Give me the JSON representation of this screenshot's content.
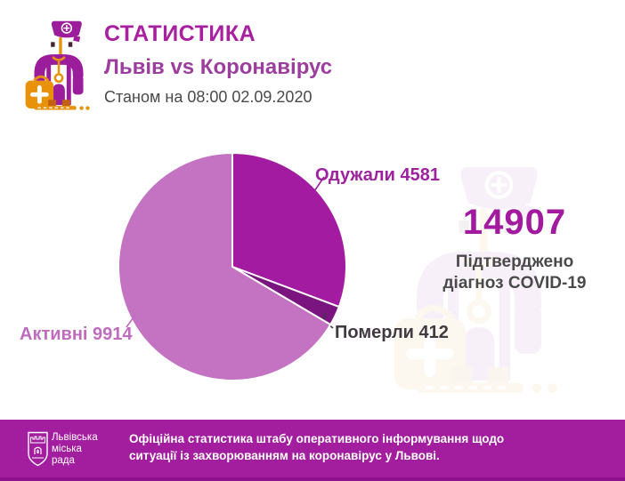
{
  "header": {
    "title": "СТАТИСТИКА",
    "subtitle": "Львів vs Коронавірус",
    "as_of": "Станом на 08:00 02.09.2020"
  },
  "total": {
    "value": "14907",
    "caption_line1": "Підтверджено",
    "caption_line2": "діагноз COVID-19"
  },
  "chart_data": {
    "type": "pie",
    "title": "Львів vs Коронавірус",
    "total": 14907,
    "start_angle_deg": 0,
    "direction": "clockwise",
    "slices": [
      {
        "label": "Одужали",
        "value": 4581,
        "color": "#a21ba0",
        "label_color": "#9e219e"
      },
      {
        "label": "Померли",
        "value": 412,
        "color": "#7a1580",
        "label_color": "#423a42"
      },
      {
        "label": "Активні",
        "value": 9914,
        "color": "#c472c2",
        "label_color": "#bf6cbe"
      }
    ]
  },
  "footer": {
    "org_lines": [
      "Львівська",
      "міська",
      "рада"
    ],
    "text": "Офіційна статистика штабу оперативного інформування щодо ситуації із захворюванням на коронавірус у Львові."
  },
  "icons": {
    "doctor": "doctor-pictogram",
    "crest": "lviv-city-shield"
  },
  "colors": {
    "accent_magenta": "#a21b9e",
    "subtitle_purple": "#9c3e9d",
    "dark_text": "#4a4a4a",
    "footer_bar": "#a31d9f",
    "footer_edge": "#8c1488",
    "orange_accent": "#e8920a",
    "background": "#ffffff"
  }
}
